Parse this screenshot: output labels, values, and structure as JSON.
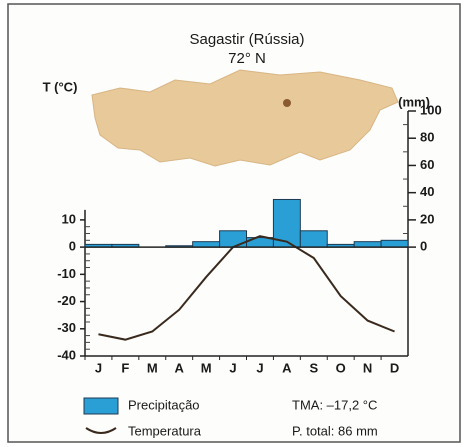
{
  "chart_data": {
    "type": "bar",
    "title": "Sagastir (Rússia)",
    "subtitle": "72° N",
    "ylabel": "T (°C)",
    "y2label": "P (mm)",
    "categories": [
      "J",
      "F",
      "M",
      "A",
      "M",
      "J",
      "J",
      "A",
      "S",
      "O",
      "N",
      "D"
    ],
    "series": [
      {
        "name": "Precipitação",
        "type": "bar",
        "axis": "y2",
        "color": "#2a9fd6",
        "values": [
          2,
          2,
          0,
          1,
          4,
          12,
          7,
          35,
          12,
          2,
          4,
          5
        ]
      },
      {
        "name": "Temperatura",
        "type": "line",
        "color": "#3a2a1e",
        "values": [
          -32,
          -34,
          -31,
          -23,
          -11,
          0,
          4,
          2,
          -4,
          -18,
          -27,
          -31
        ]
      }
    ],
    "ylim": [
      -40,
      50
    ],
    "yticks": [
      -40,
      -30,
      -20,
      -10,
      0,
      10
    ],
    "y2lim": [
      -80,
      100
    ],
    "y2ticks": [
      0,
      20,
      40,
      60,
      80,
      100
    ],
    "annotations": [
      "TMA: –17,2 °C",
      "P. total: 86 mm"
    ]
  }
}
